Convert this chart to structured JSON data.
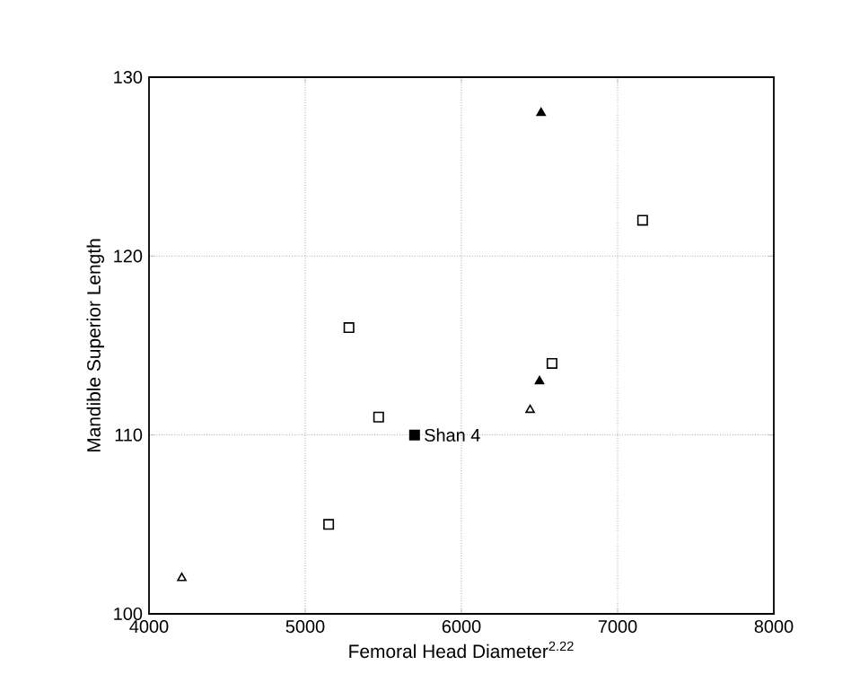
{
  "chart_data": {
    "type": "scatter",
    "xlabel": "Femoral Head Diameter$^{2.22}$",
    "ylabel": "Mandible Superior Length",
    "xlim": [
      4000,
      8000
    ],
    "xticks": [
      4000,
      5000,
      6000,
      7000,
      8000
    ],
    "ylim": [
      100,
      130
    ],
    "yticks": [
      100,
      110,
      120,
      130
    ],
    "grid": true,
    "series": [
      {
        "color": "#ffffff",
        "marker": "square",
        "x": [
          7160,
          5280,
          6580,
          5470,
          5150
        ],
        "values": [
          122,
          116,
          114,
          111,
          105
        ]
      },
      {
        "color": "#000000",
        "marker": "triangle",
        "x": [
          6510,
          6500
        ],
        "values": [
          128,
          113
        ]
      },
      {
        "color": "#ffffff",
        "marker": "triangle",
        "x": [
          6440,
          4210
        ],
        "values": [
          111.4,
          102
        ]
      },
      {
        "color": "#000000",
        "marker": "square",
        "x": [
          5700
        ],
        "values": [
          110
        ]
      }
    ],
    "annotations": [
      {
        "text": "Shan 4",
        "x": 5700,
        "y": 110
      }
    ]
  }
}
